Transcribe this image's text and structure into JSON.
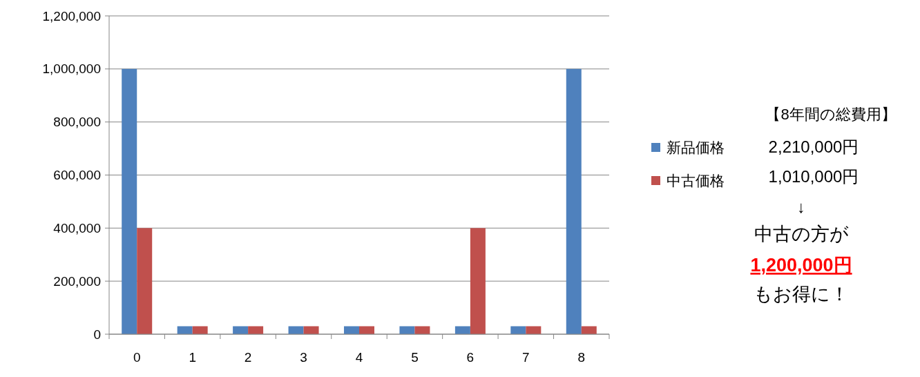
{
  "chart_data": {
    "type": "bar",
    "categories": [
      "0",
      "1",
      "2",
      "3",
      "4",
      "5",
      "6",
      "7",
      "8"
    ],
    "series": [
      {
        "name": "新品価格",
        "color": "#4f81bd",
        "values": [
          1000000,
          30000,
          30000,
          30000,
          30000,
          30000,
          30000,
          30000,
          1000000
        ]
      },
      {
        "name": "中古価格",
        "color": "#c0504d",
        "values": [
          400000,
          30000,
          30000,
          30000,
          30000,
          30000,
          400000,
          30000,
          30000
        ]
      }
    ],
    "ylim": [
      0,
      1200000
    ],
    "yticks": [
      0,
      {
        "value": 200000,
        "label": "200,000"
      },
      {
        "value": 400000,
        "label": "400,000"
      },
      {
        "value": 600000,
        "label": "600,000"
      },
      {
        "value": 800000,
        "label": "800,000"
      },
      {
        "value": 1000000,
        "label": "1,000,000"
      },
      {
        "value": 1200000,
        "label": "1,200,000"
      }
    ],
    "grid": "y",
    "legend": "right",
    "annotations": [
      "【8年間の総費用】",
      "2,210,000円",
      "1,010,000円",
      "↓",
      "中古の方が",
      "1,200,000円",
      "もお得に！"
    ]
  }
}
